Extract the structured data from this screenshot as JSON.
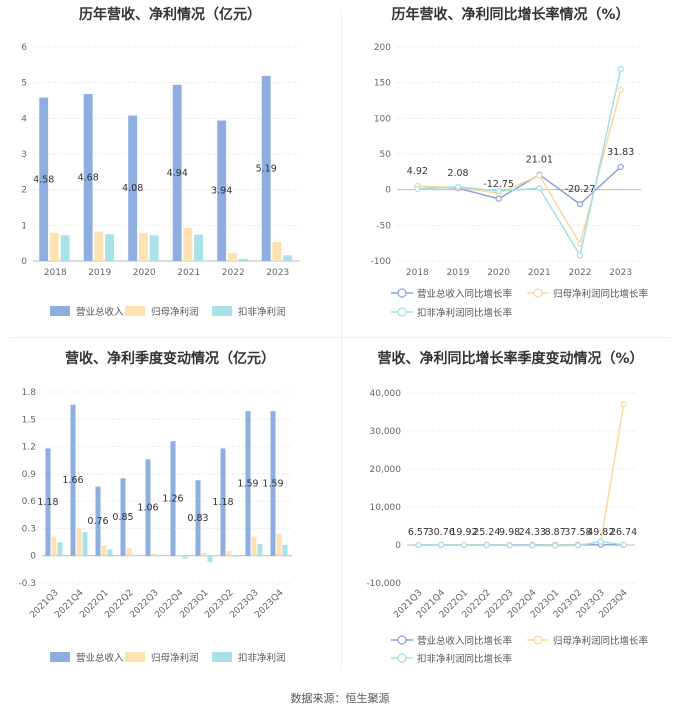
{
  "source": "数据来源：恒生聚源",
  "colors": {
    "revenue": "#8eaee0",
    "net": "#fde1b0",
    "deducted": "#a9e2e6",
    "revenue_line": "#8aa2d6",
    "net_line": "#fbd89a",
    "deducted_line": "#9fe0e6"
  },
  "chart_data": [
    {
      "id": "annual-bar",
      "type": "bar",
      "title": "历年营收、净利情况（亿元）",
      "categories": [
        "2018",
        "2019",
        "2020",
        "2021",
        "2022",
        "2023"
      ],
      "series": [
        {
          "name": "营业总收入",
          "values": [
            4.58,
            4.68,
            4.08,
            4.94,
            3.94,
            5.19
          ]
        },
        {
          "name": "归母净利润",
          "values": [
            0.79,
            0.82,
            0.78,
            0.93,
            0.22,
            0.53
          ]
        },
        {
          "name": "扣非净利润",
          "values": [
            0.72,
            0.75,
            0.72,
            0.74,
            0.06,
            0.16
          ]
        }
      ],
      "data_labels": [
        "4.58",
        "4.68",
        "4.08",
        "4.94",
        "3.94",
        "5.19"
      ],
      "ylim": [
        0,
        6
      ],
      "yticks": [
        "0",
        "1",
        "2",
        "3",
        "4",
        "5",
        "6"
      ],
      "legend": [
        "营业总收入",
        "归母净利润",
        "扣非净利润"
      ]
    },
    {
      "id": "annual-line",
      "type": "line",
      "title": "历年营收、净利同比增长率情况（%）",
      "categories": [
        "2018",
        "2019",
        "2020",
        "2021",
        "2022",
        "2023"
      ],
      "series": [
        {
          "name": "营业总收入同比增长率",
          "values": [
            4.92,
            2.08,
            -12.75,
            21.01,
            -20.27,
            31.83
          ]
        },
        {
          "name": "归母净利润同比增长率",
          "values": [
            5,
            3,
            -5,
            20,
            -76,
            140
          ]
        },
        {
          "name": "扣非净利润同比增长率",
          "values": [
            1,
            4,
            -2,
            2,
            -92,
            169
          ]
        }
      ],
      "data_labels": [
        "4.92",
        "2.08",
        "-12.75",
        "21.01",
        "-20.27",
        "31.83"
      ],
      "ylim": [
        -100,
        200
      ],
      "yticks": [
        "-100",
        "-50",
        "0",
        "50",
        "100",
        "150",
        "200"
      ],
      "legend": [
        "营业总收入同比增长率",
        "归母净利润同比增长率",
        "扣非净利润同比增长率"
      ]
    },
    {
      "id": "quarter-bar",
      "type": "bar",
      "title": "营收、净利季度变动情况（亿元）",
      "categories": [
        "2021Q3",
        "2021Q4",
        "2022Q1",
        "2022Q2",
        "2022Q3",
        "2022Q4",
        "2023Q1",
        "2023Q2",
        "2023Q3",
        "2023Q4"
      ],
      "series": [
        {
          "name": "营业总收入",
          "values": [
            1.18,
            1.66,
            0.76,
            0.85,
            1.06,
            1.26,
            0.83,
            1.18,
            1.59,
            1.59
          ]
        },
        {
          "name": "归母净利润",
          "values": [
            0.21,
            0.3,
            0.11,
            0.08,
            0.02,
            0.0,
            0.03,
            0.05,
            0.21,
            0.24
          ]
        },
        {
          "name": "扣非净利润",
          "values": [
            0.15,
            0.26,
            0.07,
            0.0,
            0.0,
            -0.03,
            -0.07,
            -0.01,
            0.13,
            0.12
          ]
        }
      ],
      "data_labels": [
        "1.18",
        "1.66",
        "0.76",
        "0.85",
        "1.06",
        "1.26",
        "0.83",
        "1.18",
        "1.59",
        "1.59"
      ],
      "ylim": [
        -0.3,
        1.8
      ],
      "yticks": [
        "-0.3",
        "0",
        "0.3",
        "0.6",
        "0.9",
        "1.2",
        "1.5",
        "1.8"
      ],
      "legend": [
        "营业总收入",
        "归母净利润",
        "扣非净利润"
      ]
    },
    {
      "id": "quarter-line",
      "type": "line",
      "title": "营收、净利同比增长率季度变动情况（%）",
      "categories": [
        "2021Q3",
        "2021Q4",
        "2022Q1",
        "2022Q2",
        "2022Q3",
        "2022Q4",
        "2023Q1",
        "2023Q2",
        "2023Q3",
        "2023Q4"
      ],
      "series": [
        {
          "name": "营业总收入同比增长率",
          "values": [
            6.57,
            30.76,
            19.92,
            25.24,
            9.98,
            24.33,
            8.87,
            37.58,
            49.82,
            26.74
          ]
        },
        {
          "name": "归母净利润同比增长率",
          "values": [
            5,
            30,
            20,
            10,
            -60,
            -100,
            -80,
            -60,
            800,
            37000
          ]
        },
        {
          "name": "扣非净利润同比增长率",
          "values": [
            3,
            25,
            15,
            -20,
            -90,
            -110,
            -150,
            -100,
            900,
            50
          ]
        }
      ],
      "data_labels": [
        "6.57",
        "30.76",
        "19.92",
        "25.24",
        "9.98",
        "24.33",
        "8.87",
        "37.58",
        "49.82",
        "26.74"
      ],
      "ylim": [
        -10000,
        40000
      ],
      "yticks": [
        "-10,000",
        "0",
        "10,000",
        "20,000",
        "30,000",
        "40,000"
      ],
      "legend": [
        "营业总收入同比增长率",
        "归母净利润同比增长率",
        "扣非净利润同比增长率"
      ]
    }
  ]
}
